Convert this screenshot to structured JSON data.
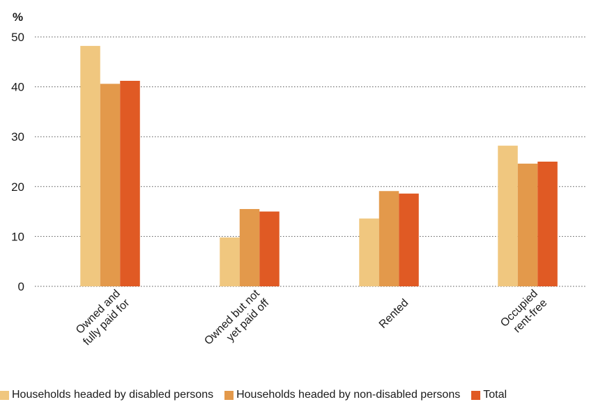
{
  "chart_data": {
    "type": "bar",
    "title": "",
    "ylabel": "%",
    "xlabel": "",
    "ylim": [
      0,
      50
    ],
    "yticks": [
      0,
      10,
      20,
      30,
      40,
      50
    ],
    "grid": "horizontal-dotted",
    "legend_position": "bottom",
    "categories": [
      [
        "Owned and",
        "fully paid for"
      ],
      [
        "Owned but not",
        "yet paid off"
      ],
      [
        "Rented"
      ],
      [
        "Occupied",
        "rent-free"
      ]
    ],
    "series": [
      {
        "name": "Households headed by disabled persons",
        "color": "#f0c77f",
        "values": [
          48.2,
          9.8,
          13.6,
          28.2
        ]
      },
      {
        "name": "Households headed by non-disabled persons",
        "color": "#e3994b",
        "values": [
          40.6,
          15.5,
          19.1,
          24.6
        ]
      },
      {
        "name": "Total",
        "color": "#e05a24",
        "values": [
          41.2,
          15.0,
          18.6,
          25.0
        ]
      }
    ]
  }
}
